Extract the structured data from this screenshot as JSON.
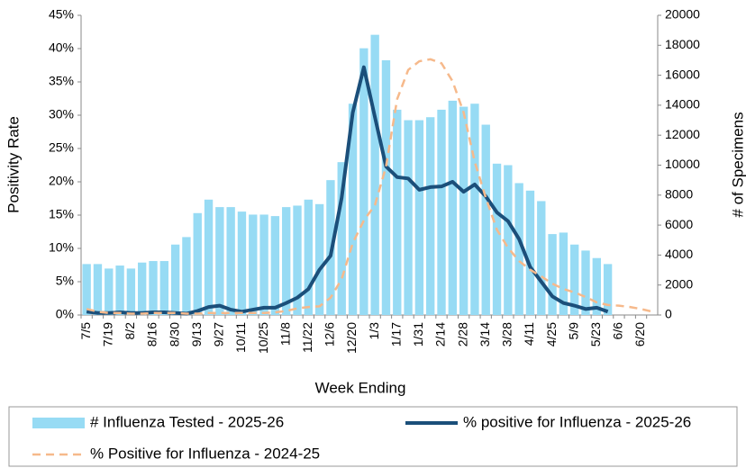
{
  "chart_data": {
    "type": "combo",
    "x_label": "Week Ending",
    "y_label": "Positivity Rate",
    "y2_label": "# of Specimens",
    "categories": [
      "7/5",
      null,
      "7/19",
      null,
      "8/2",
      null,
      "8/16",
      null,
      "8/30",
      null,
      "9/13",
      null,
      "9/27",
      null,
      "10/11",
      null,
      "10/25",
      null,
      "11/8",
      null,
      "11/22",
      null,
      "12/6",
      null,
      "12/20",
      null,
      "1/3",
      null,
      "1/17",
      null,
      "1/31",
      null,
      "2/14",
      null,
      "2/28",
      null,
      "3/14",
      null,
      "3/28",
      null,
      "4/11",
      null,
      "4/25",
      null,
      "5/9",
      null,
      "5/23",
      null,
      "6/6",
      null,
      "6/20",
      null
    ],
    "ylim": [
      0,
      45
    ],
    "yticks": [
      {
        "value": 0,
        "label": "0%"
      },
      {
        "value": 5,
        "label": "5%"
      },
      {
        "value": 10,
        "label": "10%"
      },
      {
        "value": 15,
        "label": "15%"
      },
      {
        "value": 20,
        "label": "20%"
      },
      {
        "value": 25,
        "label": "25%"
      },
      {
        "value": 30,
        "label": "30%"
      },
      {
        "value": 35,
        "label": "35%"
      },
      {
        "value": 40,
        "label": "40%"
      },
      {
        "value": 45,
        "label": "45%"
      }
    ],
    "y2lim": [
      0,
      20000
    ],
    "y2ticks": [
      0,
      2000,
      4000,
      6000,
      8000,
      10000,
      12000,
      14000,
      16000,
      18000,
      20000
    ],
    "grid": false,
    "legend": "bottom",
    "series": [
      {
        "name": "# Influenza Tested - 2025-26",
        "type": "bar",
        "axis": "y2",
        "color": "#97dbf4",
        "values": [
          3400,
          3400,
          3100,
          3300,
          3100,
          3500,
          3600,
          3600,
          4700,
          5200,
          6800,
          7700,
          7200,
          7200,
          6900,
          6700,
          6700,
          6600,
          7200,
          7300,
          7700,
          7400,
          9000,
          10200,
          14100,
          17800,
          18700,
          17000,
          13700,
          13000,
          13000,
          13200,
          13700,
          14300,
          13900,
          14100,
          12700,
          10100,
          10000,
          8800,
          8300,
          7600,
          5400,
          5500,
          4700,
          4300,
          3800,
          3400,
          null,
          null,
          null,
          null
        ]
      },
      {
        "name": "% positive for Influenza - 2025-26",
        "type": "line",
        "color": "#1b4f7a",
        "dashed": false,
        "values": [
          0.5,
          0.3,
          0.3,
          0.4,
          0.3,
          0.3,
          0.4,
          0.4,
          0.3,
          0.2,
          0.6,
          1.2,
          1.4,
          0.8,
          0.5,
          0.8,
          1.1,
          1.1,
          1.8,
          2.6,
          3.9,
          6.8,
          8.9,
          17.6,
          30.4,
          37.2,
          29.7,
          22.3,
          20.7,
          20.5,
          18.8,
          19.2,
          19.3,
          20.0,
          18.5,
          19.6,
          17.8,
          15.4,
          14.1,
          11.4,
          7.2,
          5.0,
          2.8,
          1.8,
          1.4,
          0.9,
          1.1,
          0.5,
          null,
          null,
          null,
          null
        ]
      },
      {
        "name": "% Positive for Influenza - 2024-25",
        "type": "line",
        "color": "#f6b98b",
        "dashed": true,
        "values": [
          0.9,
          0.5,
          0.3,
          0.3,
          0.2,
          0.2,
          0.3,
          0.3,
          0.3,
          0.2,
          0.2,
          0.3,
          0.3,
          0.3,
          0.3,
          0.3,
          0.3,
          0.4,
          0.6,
          1.0,
          1.2,
          1.3,
          2.6,
          5.4,
          10.8,
          14.2,
          16.5,
          22.3,
          32.4,
          36.8,
          38.1,
          38.4,
          37.8,
          35.1,
          30.4,
          23.0,
          17.6,
          12.8,
          10.1,
          8.1,
          6.8,
          5.8,
          4.7,
          3.9,
          3.4,
          2.7,
          1.9,
          1.5,
          1.4,
          1.2,
          0.9,
          0.5
        ]
      }
    ]
  }
}
